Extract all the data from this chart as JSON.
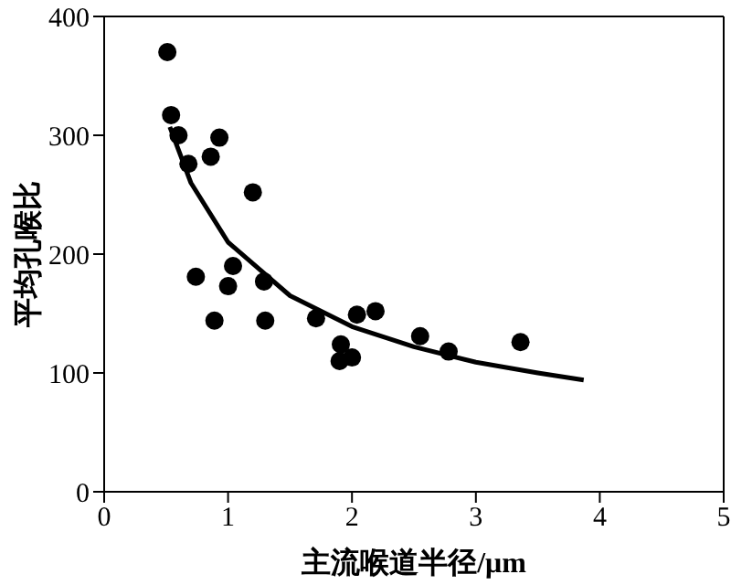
{
  "chart_data": {
    "type": "scatter",
    "xlabel": "主流喉道半径/μm",
    "ylabel": "平均孔喉比",
    "xlim": [
      0,
      5
    ],
    "xticks": [
      0,
      1,
      2,
      3,
      4,
      5
    ],
    "ylim": [
      0,
      400
    ],
    "yticks": [
      0,
      100,
      200,
      300,
      400
    ],
    "grid": false,
    "legend": false,
    "marker": "circle",
    "series": [
      {
        "color": "#000000",
        "x": [
          0.51,
          0.54,
          0.6,
          0.68,
          0.93,
          0.86,
          1.2,
          0.74,
          1.04,
          1.0,
          0.89,
          1.29,
          1.3,
          1.71,
          2.04,
          2.19,
          1.91,
          1.9,
          2.0,
          2.55,
          2.78,
          3.36
        ],
        "values": [
          370,
          317,
          300,
          276,
          298,
          282,
          252,
          181,
          190,
          173,
          144,
          177,
          144,
          146,
          149,
          152,
          124,
          110,
          113,
          131,
          118,
          126
        ]
      },
      {
        "type": "line",
        "color": "#000000",
        "marker": "none",
        "x": [
          0.53,
          0.7,
          1,
          1.5,
          2,
          2.5,
          3,
          3.5,
          3.87
        ],
        "values": [
          307,
          260,
          210,
          165,
          139,
          122,
          109,
          100,
          94
        ]
      }
    ]
  }
}
